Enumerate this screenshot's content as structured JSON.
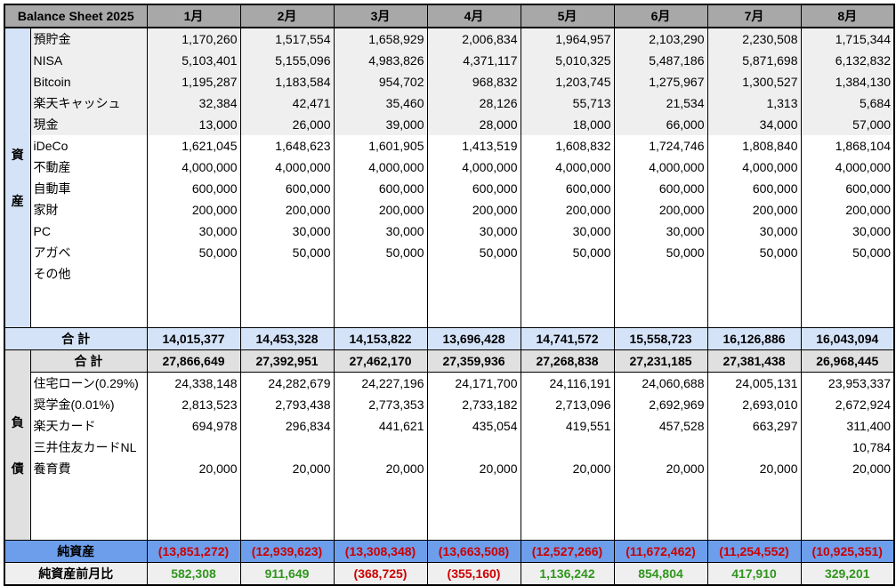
{
  "title": "Balance Sheet 2025",
  "months": [
    "1月",
    "2月",
    "3月",
    "4月",
    "5月",
    "6月",
    "7月",
    "8月"
  ],
  "colors": {
    "header_bg": "#a8a8a8",
    "asset_bg": "#d5e3f8",
    "liability_bg": "#e0e0e0",
    "net_bg": "#6d9eeb",
    "negative": "#cc0000",
    "positive": "#2f961c"
  },
  "assets": {
    "label": "資産",
    "items": [
      {
        "name": "預貯金",
        "values": [
          "1,170,260",
          "1,517,554",
          "1,658,929",
          "2,006,834",
          "1,964,957",
          "2,103,290",
          "2,230,508",
          "1,715,344"
        ]
      },
      {
        "name": "NISA",
        "values": [
          "5,103,401",
          "5,155,096",
          "4,983,826",
          "4,371,117",
          "5,010,325",
          "5,487,186",
          "5,871,698",
          "6,132,832"
        ]
      },
      {
        "name": "Bitcoin",
        "values": [
          "1,195,287",
          "1,183,584",
          "954,702",
          "968,832",
          "1,203,745",
          "1,275,967",
          "1,300,527",
          "1,384,130"
        ]
      },
      {
        "name": "楽天キャッシュ",
        "values": [
          "32,384",
          "42,471",
          "35,460",
          "28,126",
          "55,713",
          "21,534",
          "1,313",
          "5,684"
        ]
      },
      {
        "name": "現金",
        "values": [
          "13,000",
          "26,000",
          "39,000",
          "28,000",
          "18,000",
          "66,000",
          "34,000",
          "57,000"
        ]
      },
      {
        "name": "iDeCo",
        "values": [
          "1,621,045",
          "1,648,623",
          "1,601,905",
          "1,413,519",
          "1,608,832",
          "1,724,746",
          "1,808,840",
          "1,868,104"
        ]
      },
      {
        "name": "不動産",
        "values": [
          "4,000,000",
          "4,000,000",
          "4,000,000",
          "4,000,000",
          "4,000,000",
          "4,000,000",
          "4,000,000",
          "4,000,000"
        ]
      },
      {
        "name": "自動車",
        "values": [
          "600,000",
          "600,000",
          "600,000",
          "600,000",
          "600,000",
          "600,000",
          "600,000",
          "600,000"
        ]
      },
      {
        "name": "家財",
        "values": [
          "200,000",
          "200,000",
          "200,000",
          "200,000",
          "200,000",
          "200,000",
          "200,000",
          "200,000"
        ]
      },
      {
        "name": "PC",
        "values": [
          "30,000",
          "30,000",
          "30,000",
          "30,000",
          "30,000",
          "30,000",
          "30,000",
          "30,000"
        ]
      },
      {
        "name": "アガベ",
        "values": [
          "50,000",
          "50,000",
          "50,000",
          "50,000",
          "50,000",
          "50,000",
          "50,000",
          "50,000"
        ]
      },
      {
        "name": "その他",
        "values": [
          "",
          "",
          "",
          "",
          "",
          "",
          "",
          ""
        ]
      }
    ],
    "total_label": "合 計",
    "totals": [
      "14,015,377",
      "14,453,328",
      "14,153,822",
      "13,696,428",
      "14,741,572",
      "15,558,723",
      "16,126,886",
      "16,043,094"
    ]
  },
  "liabilities": {
    "label": "負債",
    "total_label": "合 計",
    "totals": [
      "27,866,649",
      "27,392,951",
      "27,462,170",
      "27,359,936",
      "27,268,838",
      "27,231,185",
      "27,381,438",
      "26,968,445"
    ],
    "items": [
      {
        "name": "住宅ローン(0.29%)",
        "values": [
          "24,338,148",
          "24,282,679",
          "24,227,196",
          "24,171,700",
          "24,116,191",
          "24,060,688",
          "24,005,131",
          "23,953,337"
        ]
      },
      {
        "name": "奨学金(0.01%)",
        "values": [
          "2,813,523",
          "2,793,438",
          "2,773,353",
          "2,733,182",
          "2,713,096",
          "2,692,969",
          "2,693,010",
          "2,672,924"
        ]
      },
      {
        "name": "楽天カード",
        "values": [
          "694,978",
          "296,834",
          "441,621",
          "435,054",
          "419,551",
          "457,528",
          "663,297",
          "311,400"
        ]
      },
      {
        "name": "三井住友カードNL",
        "values": [
          "",
          "",
          "",
          "",
          "",
          "",
          "",
          "10,784"
        ]
      },
      {
        "name": "養育費",
        "values": [
          "20,000",
          "20,000",
          "20,000",
          "20,000",
          "20,000",
          "20,000",
          "20,000",
          "20,000"
        ]
      }
    ]
  },
  "net_assets": {
    "label": "純資産",
    "values": [
      "(13,851,272)",
      "(12,939,623)",
      "(13,308,348)",
      "(13,663,508)",
      "(12,527,266)",
      "(11,672,462)",
      "(11,254,552)",
      "(10,925,351)"
    ]
  },
  "month_over_month": {
    "label": "純資産前月比",
    "values": [
      "582,308",
      "911,649",
      "(368,725)",
      "(355,160)",
      "1,136,242",
      "854,804",
      "417,910",
      "329,201"
    ]
  }
}
